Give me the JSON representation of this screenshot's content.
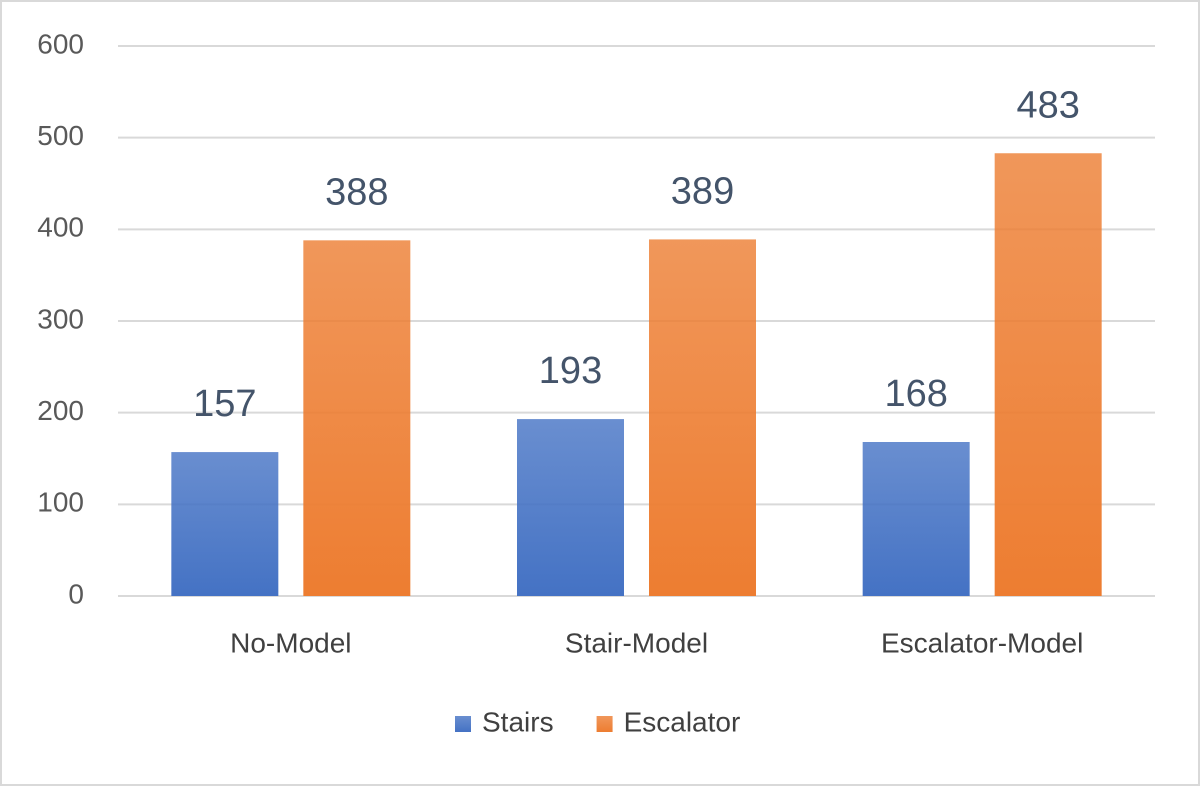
{
  "chart_data": {
    "type": "bar",
    "categories": [
      "No-Model",
      "Stair-Model",
      "Escalator-Model"
    ],
    "series": [
      {
        "name": "Stairs",
        "color": "#4472c4",
        "values": [
          157,
          193,
          168
        ]
      },
      {
        "name": "Escalator",
        "color": "#ed7d31",
        "values": [
          388,
          389,
          483
        ]
      }
    ],
    "ylim": [
      0,
      600
    ],
    "yticks": [
      0,
      100,
      200,
      300,
      400,
      500,
      600
    ],
    "grid": true,
    "legend": "bottom"
  }
}
